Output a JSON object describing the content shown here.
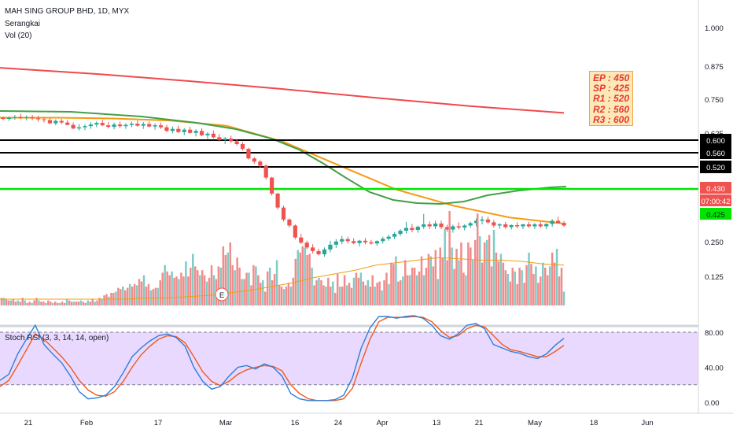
{
  "header": {
    "title": "MAH SING GROUP BHD, 1D, MYX",
    "indicator": "Serangkai",
    "volume": "Vol (20)"
  },
  "stoch_label": "Stoch RSI (3, 3, 14, 14, open)",
  "note": [
    "EP : 450",
    "SP : 425",
    "R1 : 520",
    "R2 : 560",
    "R3 : 600"
  ],
  "earnings_marker": "E",
  "colors": {
    "up": "#26a69a",
    "down": "#ef5350",
    "vol_up": "#80cbc4",
    "vol_down": "#f28b8b",
    "ma_long": "#f0494c",
    "ma_mid": "#f39c12",
    "ma_short": "#43a047",
    "support": "#00e600",
    "rsi_k": "#2f7ed8",
    "rsi_d": "#f05a1a",
    "rsi_band": "#e1ccff"
  },
  "chart_data": [
    {
      "type": "candlestick",
      "title": "MAH SING GROUP BHD, 1D, MYX",
      "y_ticks": [
        "1.000",
        "0.875",
        "0.750",
        "0.625",
        "0.500"
      ],
      "x_ticks": [
        "21",
        "Feb",
        "17",
        "Mar",
        "16",
        "24",
        "Apr",
        "13",
        "21",
        "May",
        "18",
        "Jun"
      ],
      "horizontal_lines": [
        {
          "value": 0.6,
          "label": "0.600",
          "color": "#000000"
        },
        {
          "value": 0.56,
          "label": "0.560",
          "color": "#000000"
        },
        {
          "value": 0.52,
          "label": "0.520",
          "color": "#000000"
        },
        {
          "value": 0.43,
          "label": "0.430",
          "color": "#00e600"
        }
      ],
      "price_tags": [
        {
          "label": "0.430",
          "bg": "#ef5350"
        },
        {
          "label": "07:00:42",
          "bg": "#ef5350"
        },
        {
          "label": "0.425",
          "bg": "#00e600"
        }
      ],
      "ohlc": [
        [
          0.7,
          0.703,
          0.694,
          0.697
        ],
        [
          0.697,
          0.703,
          0.692,
          0.7
        ],
        [
          0.7,
          0.707,
          0.695,
          0.702
        ],
        [
          0.702,
          0.71,
          0.697,
          0.699
        ],
        [
          0.699,
          0.706,
          0.693,
          0.701
        ],
        [
          0.701,
          0.707,
          0.694,
          0.698
        ],
        [
          0.698,
          0.705,
          0.69,
          0.696
        ],
        [
          0.696,
          0.702,
          0.688,
          0.694
        ],
        [
          0.694,
          0.699,
          0.684,
          0.686
        ],
        [
          0.686,
          0.696,
          0.681,
          0.692
        ],
        [
          0.692,
          0.697,
          0.684,
          0.688
        ],
        [
          0.688,
          0.694,
          0.681,
          0.682
        ],
        [
          0.682,
          0.688,
          0.671,
          0.673
        ],
        [
          0.673,
          0.684,
          0.668,
          0.676
        ],
        [
          0.676,
          0.684,
          0.669,
          0.679
        ],
        [
          0.679,
          0.689,
          0.672,
          0.683
        ],
        [
          0.683,
          0.691,
          0.676,
          0.687
        ],
        [
          0.687,
          0.695,
          0.679,
          0.681
        ],
        [
          0.681,
          0.689,
          0.673,
          0.677
        ],
        [
          0.677,
          0.688,
          0.671,
          0.683
        ],
        [
          0.683,
          0.69,
          0.674,
          0.679
        ],
        [
          0.679,
          0.686,
          0.672,
          0.682
        ],
        [
          0.682,
          0.69,
          0.676,
          0.685
        ],
        [
          0.685,
          0.693,
          0.677,
          0.68
        ],
        [
          0.68,
          0.689,
          0.672,
          0.684
        ],
        [
          0.684,
          0.691,
          0.676,
          0.678
        ],
        [
          0.678,
          0.686,
          0.67,
          0.681
        ],
        [
          0.681,
          0.688,
          0.672,
          0.676
        ],
        [
          0.676,
          0.682,
          0.664,
          0.667
        ],
        [
          0.667,
          0.678,
          0.661,
          0.672
        ],
        [
          0.672,
          0.68,
          0.662,
          0.664
        ],
        [
          0.664,
          0.674,
          0.656,
          0.67
        ],
        [
          0.67,
          0.677,
          0.66,
          0.662
        ],
        [
          0.662,
          0.671,
          0.653,
          0.667
        ],
        [
          0.667,
          0.674,
          0.654,
          0.656
        ],
        [
          0.656,
          0.664,
          0.647,
          0.66
        ],
        [
          0.66,
          0.668,
          0.648,
          0.651
        ],
        [
          0.651,
          0.659,
          0.64,
          0.644
        ],
        [
          0.644,
          0.652,
          0.634,
          0.648
        ],
        [
          0.648,
          0.655,
          0.637,
          0.641
        ],
        [
          0.641,
          0.646,
          0.63,
          0.634
        ],
        [
          0.634,
          0.639,
          0.618,
          0.622
        ],
        [
          0.622,
          0.625,
          0.595,
          0.598
        ],
        [
          0.598,
          0.601,
          0.585,
          0.59
        ],
        [
          0.59,
          0.594,
          0.575,
          0.58
        ],
        [
          0.58,
          0.583,
          0.545,
          0.55
        ],
        [
          0.55,
          0.552,
          0.505,
          0.51
        ],
        [
          0.51,
          0.512,
          0.47,
          0.475
        ],
        [
          0.475,
          0.48,
          0.44,
          0.445
        ],
        [
          0.445,
          0.448,
          0.425,
          0.43
        ],
        [
          0.43,
          0.433,
          0.395,
          0.4
        ],
        [
          0.4,
          0.409,
          0.384,
          0.387
        ],
        [
          0.387,
          0.392,
          0.37,
          0.375
        ],
        [
          0.375,
          0.383,
          0.36,
          0.366
        ],
        [
          0.366,
          0.372,
          0.355,
          0.358
        ],
        [
          0.358,
          0.375,
          0.352,
          0.37
        ],
        [
          0.37,
          0.392,
          0.363,
          0.382
        ],
        [
          0.382,
          0.396,
          0.374,
          0.39
        ],
        [
          0.39,
          0.404,
          0.383,
          0.396
        ],
        [
          0.396,
          0.402,
          0.385,
          0.391
        ],
        [
          0.391,
          0.398,
          0.383,
          0.386
        ],
        [
          0.386,
          0.394,
          0.378,
          0.392
        ],
        [
          0.392,
          0.399,
          0.383,
          0.388
        ],
        [
          0.388,
          0.394,
          0.382,
          0.385
        ],
        [
          0.385,
          0.393,
          0.379,
          0.391
        ],
        [
          0.391,
          0.402,
          0.385,
          0.397
        ],
        [
          0.397,
          0.407,
          0.392,
          0.402
        ],
        [
          0.402,
          0.414,
          0.396,
          0.409
        ],
        [
          0.409,
          0.421,
          0.404,
          0.417
        ],
        [
          0.417,
          0.439,
          0.41,
          0.424
        ],
        [
          0.424,
          0.434,
          0.413,
          0.419
        ],
        [
          0.419,
          0.43,
          0.412,
          0.427
        ],
        [
          0.427,
          0.459,
          0.421,
          0.433
        ],
        [
          0.433,
          0.44,
          0.421,
          0.428
        ],
        [
          0.428,
          0.442,
          0.421,
          0.435
        ],
        [
          0.435,
          0.442,
          0.421,
          0.426
        ],
        [
          0.426,
          0.432,
          0.414,
          0.42
        ],
        [
          0.42,
          0.432,
          0.412,
          0.428
        ],
        [
          0.428,
          0.438,
          0.42,
          0.425
        ],
        [
          0.425,
          0.433,
          0.418,
          0.43
        ],
        [
          0.43,
          0.44,
          0.424,
          0.436
        ],
        [
          0.436,
          0.448,
          0.428,
          0.442
        ],
        [
          0.442,
          0.453,
          0.433,
          0.445
        ],
        [
          0.445,
          0.452,
          0.434,
          0.438
        ],
        [
          0.438,
          0.444,
          0.425,
          0.43
        ],
        [
          0.43,
          0.436,
          0.422,
          0.433
        ],
        [
          0.433,
          0.439,
          0.422,
          0.426
        ],
        [
          0.426,
          0.433,
          0.42,
          0.431
        ],
        [
          0.431,
          0.438,
          0.423,
          0.428
        ],
        [
          0.428,
          0.434,
          0.421,
          0.433
        ],
        [
          0.433,
          0.439,
          0.424,
          0.428
        ],
        [
          0.428,
          0.436,
          0.421,
          0.433
        ],
        [
          0.433,
          0.439,
          0.424,
          0.428
        ],
        [
          0.428,
          0.435,
          0.421,
          0.434
        ],
        [
          0.434,
          0.446,
          0.427,
          0.442
        ],
        [
          0.442,
          0.452,
          0.435,
          0.436
        ],
        [
          0.436,
          0.441,
          0.427,
          0.43
        ]
      ],
      "ma_long": [
        0.825,
        0.81,
        0.792,
        0.772,
        0.75,
        0.729,
        0.712
      ],
      "ma_mid": [
        0.7,
        0.7,
        0.698,
        0.693,
        0.68,
        0.64,
        0.58,
        0.52,
        0.48,
        0.45,
        0.434
      ],
      "ma_short": [
        0.7,
        0.698,
        0.688,
        0.672,
        0.65,
        0.62,
        0.56,
        0.49,
        0.44,
        0.41,
        0.404,
        0.418,
        0.43,
        0.434
      ]
    },
    {
      "type": "bar",
      "title": "Vol (20)",
      "y_ticks": [
        "0.250",
        "0.125"
      ],
      "volumes": [
        6,
        6,
        5,
        4,
        4,
        5,
        3,
        4,
        3,
        6,
        4,
        2,
        3,
        2,
        4,
        6,
        4,
        3,
        3,
        2,
        4,
        3,
        2,
        3,
        2,
        2,
        3,
        2,
        5,
        4,
        3,
        3,
        3,
        3,
        4,
        3,
        2,
        4,
        3,
        5,
        3,
        4,
        6,
        5,
        8,
        9,
        7,
        10,
        10,
        11,
        14,
        13,
        15,
        12,
        14,
        17,
        15,
        17,
        16,
        21,
        19,
        24,
        15,
        17,
        12,
        13,
        14,
        14,
        20,
        26,
        32,
        27,
        24,
        27,
        22,
        23,
        21,
        26,
        23,
        35,
        23,
        30,
        41,
        31,
        28,
        24,
        28,
        24,
        19,
        22,
        32,
        24,
        21,
        31,
        30,
        47,
        40,
        42,
        50,
        32,
        28,
        38,
        30,
        21,
        21,
        26,
        26,
        16,
        32,
        31,
        24,
        18,
        20,
        11,
        27,
        30,
        20,
        25,
        36,
        16,
        15,
        13,
        15,
        18,
        15,
        22,
        37,
        44,
        42,
        47,
        46,
        40,
        41,
        30,
        16,
        20,
        22,
        20,
        16,
        15,
        22,
        15,
        19,
        10,
        25,
        15,
        15,
        24,
        16,
        18,
        14,
        22,
        26,
        22,
        26,
        19,
        16,
        20,
        15,
        24,
        15,
        18,
        19,
        12,
        20,
        26,
        17,
        34,
        33,
        39,
        19,
        20,
        23,
        36,
        24,
        24,
        30,
        30,
        24,
        27,
        39,
        24,
        30,
        41,
        39,
        31,
        44,
        21,
        46,
        38,
        61,
        36,
        75,
        46,
        29,
        45,
        36,
        50,
        26,
        24,
        50,
        46,
        36,
        52,
        73,
        55,
        34,
        50,
        52,
        56,
        31,
        60,
        42,
        35,
        41,
        34,
        28,
        25,
        19,
        30,
        27,
        17,
        30,
        28,
        18,
        32,
        42,
        33,
        25,
        31,
        18,
        23,
        34,
        30,
        24,
        31,
        42,
        34,
        45,
        23,
        30,
        11
      ],
      "volume_ma": [
        5,
        5,
        5,
        5,
        5,
        5,
        5,
        6,
        6,
        7,
        8,
        10,
        12,
        15,
        18,
        22,
        25,
        28,
        32,
        34,
        36,
        38,
        37,
        36,
        36,
        35,
        33,
        32
      ]
    },
    {
      "type": "line",
      "title": "Stoch RSI (3, 3, 14, 14, open)",
      "y_ticks": [
        "80.00",
        "40.00",
        "0.00"
      ],
      "k": [
        25,
        32,
        55,
        72,
        88,
        66,
        55,
        45,
        30,
        12,
        4,
        5,
        8,
        18,
        34,
        52,
        62,
        70,
        76,
        78,
        74,
        64,
        40,
        24,
        15,
        18,
        30,
        40,
        42,
        38,
        44,
        40,
        30,
        10,
        4,
        2,
        2,
        2,
        3,
        8,
        28,
        62,
        85,
        98,
        98,
        96,
        98,
        99,
        96,
        88,
        76,
        72,
        78,
        88,
        90,
        84,
        66,
        62,
        58,
        56,
        52,
        50,
        55,
        65,
        73
      ],
      "d": [
        18,
        25,
        42,
        60,
        78,
        72,
        62,
        52,
        40,
        25,
        14,
        8,
        7,
        12,
        24,
        40,
        54,
        64,
        72,
        76,
        75,
        68,
        52,
        35,
        24,
        19,
        24,
        32,
        37,
        40,
        42,
        41,
        36,
        20,
        10,
        4,
        2,
        2,
        2,
        4,
        16,
        45,
        72,
        92,
        97,
        97,
        97,
        98,
        97,
        92,
        82,
        74,
        76,
        84,
        88,
        86,
        76,
        66,
        60,
        58,
        55,
        52,
        52,
        58,
        65
      ]
    }
  ]
}
